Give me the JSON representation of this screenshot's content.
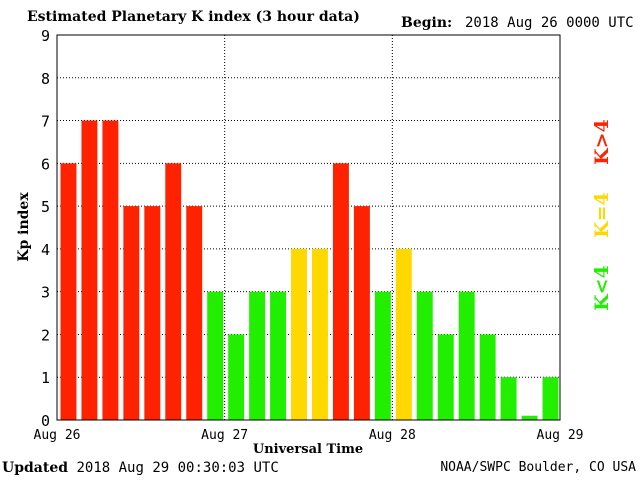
{
  "header": {
    "title": "Estimated Planetary K index (3 hour data)",
    "begin_label": "Begin:",
    "begin_value": "2018 Aug 26 0000 UTC"
  },
  "footer": {
    "updated_label": "Updated",
    "updated_value": "2018 Aug 29 00:30:03 UTC",
    "credit": "NOAA/SWPC Boulder, CO USA"
  },
  "legend": [
    {
      "label": "K>4",
      "color": "#ff2200"
    },
    {
      "label": "K=4",
      "color": "#ffd800"
    },
    {
      "label": "K<4",
      "color": "#22ee00"
    }
  ],
  "chart_data": {
    "type": "bar",
    "title": "Estimated Planetary K index (3 hour data)",
    "xlabel": "Universal Time",
    "ylabel": "Kp index",
    "ylim": [
      0,
      9
    ],
    "yticks": [
      0,
      1,
      2,
      3,
      4,
      5,
      6,
      7,
      8,
      9
    ],
    "xticks": [
      "Aug 26",
      "Aug 27",
      "Aug 28",
      "Aug 29"
    ],
    "grid": true,
    "bar_interval_hours": 3,
    "values": [
      6,
      7,
      7,
      5,
      5,
      6,
      5,
      3,
      2,
      3,
      3,
      4,
      4,
      6,
      5,
      3,
      4,
      3,
      2,
      3,
      2,
      1,
      0.1,
      1
    ],
    "colors": {
      "high": "#ff2200",
      "equal": "#ffd800",
      "low": "#22ee00"
    }
  }
}
